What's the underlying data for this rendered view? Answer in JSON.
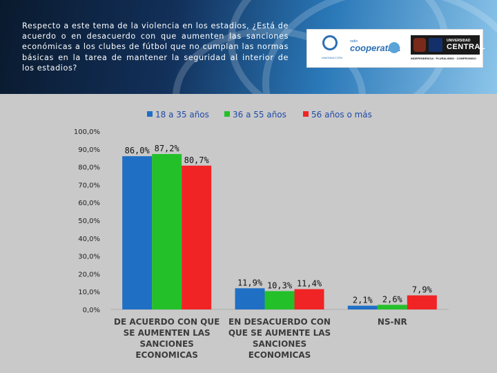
{
  "header": {
    "question": "Respecto a este tema de la violencia en los estadios, ¿Está de acuerdo o en desacuerdo con que aumenten las sanciones económicas  a los clubes de fútbol que no cumplan las normas básicas en la tarea de mantener la seguridad al interior de los estadios?",
    "logos": {
      "first_caption": "IMAGINACCIÓN",
      "second_small": "radio",
      "second_name": "cooperativa",
      "third_line1": "UNIVERSIDAD",
      "third_line2": "CENTRAL",
      "third_line3": "INDEPENDENCIA · PLURALISMO · COMPROMISO"
    }
  },
  "chart_data": {
    "type": "bar",
    "categories": [
      [
        "DE ACUERDO CON QUE",
        "SE AUMENTEN LAS",
        "SANCIONES",
        "ECONOMICAS"
      ],
      [
        "EN DESACUERDO CON",
        "QUE SE AUMENTE LAS",
        "SANCIONES",
        "ECONOMICAS"
      ],
      [
        "NS-NR"
      ]
    ],
    "series": [
      {
        "name": "18 a 35 años",
        "color": "#1f6fc5",
        "values": [
          86.0,
          11.9,
          2.1
        ],
        "labels": [
          "86,0%",
          "11,9%",
          "2,1%"
        ]
      },
      {
        "name": "36 a 55 años",
        "color": "#23c02a",
        "values": [
          87.2,
          10.3,
          2.6
        ],
        "labels": [
          "87,2%",
          "10,3%",
          "2,6%"
        ]
      },
      {
        "name": "56 años o más",
        "color": "#f02424",
        "values": [
          80.7,
          11.4,
          7.9
        ],
        "labels": [
          "80,7%",
          "11,4%",
          "7,9%"
        ]
      }
    ],
    "yticks": [
      "0,0%",
      "10,0%",
      "20,0%",
      "30,0%",
      "40,0%",
      "50,0%",
      "60,0%",
      "70,0%",
      "80,0%",
      "90,0%",
      "100,0%"
    ],
    "ylim": [
      0,
      100
    ],
    "grid": false,
    "legend_position": "top"
  }
}
